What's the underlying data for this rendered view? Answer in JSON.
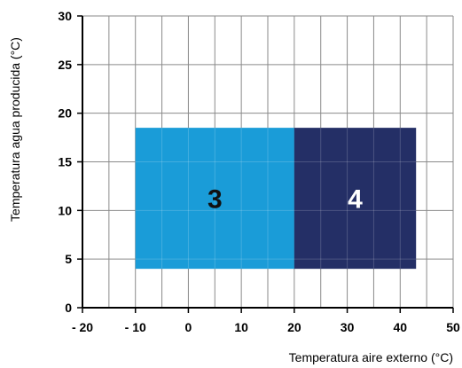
{
  "chart_data": {
    "type": "area",
    "title": "",
    "xlabel": "Temperatura aire externo (°C)",
    "ylabel": "Temperatura agua producida (°C)",
    "xlim": [
      -20,
      50
    ],
    "ylim": [
      0,
      30
    ],
    "x_ticks": [
      -20,
      -10,
      0,
      10,
      20,
      30,
      40,
      50
    ],
    "x_tick_labels": [
      "- 20",
      "- 10",
      "0",
      "10",
      "20",
      "30",
      "40",
      "50"
    ],
    "y_ticks": [
      0,
      5,
      10,
      15,
      20,
      25,
      30
    ],
    "y_tick_labels": [
      "0",
      "5",
      "10",
      "15",
      "20",
      "25",
      "30"
    ],
    "x_minor_step": 5,
    "y_minor_step": 5,
    "grid": true,
    "zones": [
      {
        "label": "3",
        "x_min": -10,
        "x_max": 20,
        "y_min": 4,
        "y_max": 18.5,
        "color": "#1a9cd8",
        "label_color": "#111111"
      },
      {
        "label": "4",
        "x_min": 20,
        "x_max": 43,
        "y_min": 4,
        "y_max": 18.5,
        "color": "#242f66",
        "label_color": "#ffffff"
      }
    ],
    "colors": {
      "grid": "#8a8a8a",
      "axis": "#000000",
      "zone_divider": "#2a6aa0"
    }
  }
}
